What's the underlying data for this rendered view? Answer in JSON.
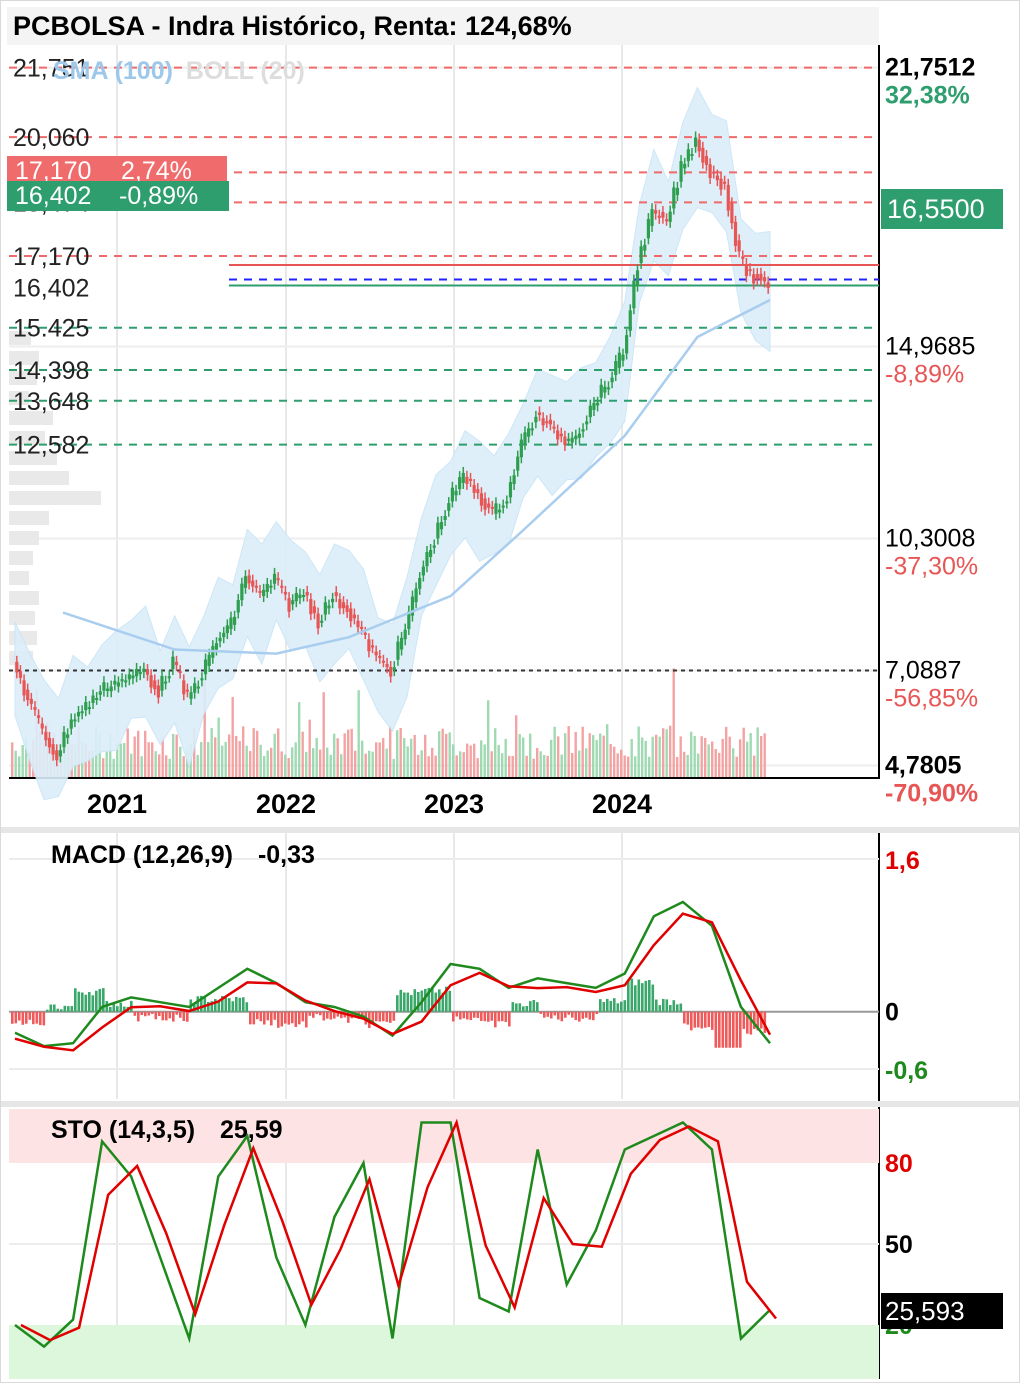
{
  "title": "PCBOLSA - Indra Histórico, Renta: 124,68%",
  "colors": {
    "up": "#2e9e4f",
    "down": "#e85555",
    "sma": "#a9cdee",
    "boll_fill": "#dbeefa",
    "macd_line": "#1e8a1e",
    "signal_line": "#e00000"
  },
  "main": {
    "indicator_sma": "SMA (100)",
    "indicator_boll": "BOLL (20)",
    "x_ticks": [
      "2021",
      "2022",
      "2023",
      "2024"
    ],
    "left_levels": [
      {
        "label": "21,751",
        "value": 21.751
      },
      {
        "label": "20,060",
        "value": 20.06
      },
      {
        "label": "19,204",
        "value": 19.204
      },
      {
        "label": "18,474",
        "value": 18.474
      },
      {
        "label": "17,170",
        "value": 17.17
      },
      {
        "label": "16,402",
        "value": 16.402
      },
      {
        "label": "15.425",
        "value": 15.425
      },
      {
        "label": "14,398",
        "value": 14.398
      },
      {
        "label": "13,648",
        "value": 13.648
      },
      {
        "label": "12,582",
        "value": 12.582
      }
    ],
    "badge_red": {
      "price": "17,170",
      "pct": "2,74%"
    },
    "badge_green": {
      "price": "16,402",
      "pct": "-0,89%"
    },
    "right_axis": [
      {
        "price": "21,7512",
        "pct": "32,38%",
        "value": 21.7512
      },
      {
        "price": "14,9685",
        "pct": "-8,89%",
        "value": 14.9685
      },
      {
        "price": "10,3008",
        "pct": "-37,30%",
        "value": 10.3008
      },
      {
        "price": "7,0887",
        "pct": "-56,85%",
        "value": 7.0887
      },
      {
        "price": "4,7805",
        "pct": "-70,90%",
        "value": 4.7805
      }
    ],
    "current_price": "16,5500"
  },
  "macd": {
    "label": "MACD (12,26,9)",
    "value": "-0,33",
    "axis": [
      "1,6",
      "0",
      "-0,6"
    ]
  },
  "sto": {
    "label": "STO (14,3,5)",
    "value": "25,59",
    "axis": [
      "80",
      "50",
      "20"
    ],
    "current": "25,593"
  },
  "chart_data": [
    {
      "type": "line",
      "title": "PCBOLSA - Indra Histórico, Renta: 124,68%",
      "xlabel": "",
      "ylabel": "",
      "x_ticks": [
        "2021",
        "2022",
        "2023",
        "2024"
      ],
      "ylim": [
        4.5,
        22
      ],
      "series": [
        {
          "name": "",
          "points": [
            [
              "2020-07",
              7.3
            ],
            [
              "2020-08",
              6.4
            ],
            [
              "2020-09",
              5.6
            ],
            [
              "2020-10",
              5.0
            ],
            [
              "2020-11",
              5.9
            ],
            [
              "2020-12",
              6.2
            ],
            [
              "2021-01",
              6.6
            ],
            [
              "2021-02",
              6.8
            ],
            [
              "2021-03",
              6.9
            ],
            [
              "2021-04",
              7.1
            ],
            [
              "2021-05",
              6.6
            ],
            [
              "2021-06",
              7.3
            ],
            [
              "2021-07",
              6.4
            ],
            [
              "2021-08",
              7.0
            ],
            [
              "2021-09",
              7.8
            ],
            [
              "2021-10",
              8.2
            ],
            [
              "2021-11",
              9.4
            ],
            [
              "2021-12",
              8.9
            ],
            [
              "2022-01",
              9.3
            ],
            [
              "2022-02",
              8.7
            ],
            [
              "2022-03",
              9.0
            ],
            [
              "2022-04",
              8.3
            ],
            [
              "2022-05",
              8.9
            ],
            [
              "2022-06",
              8.6
            ],
            [
              "2022-07",
              8.0
            ],
            [
              "2022-08",
              7.4
            ],
            [
              "2022-09",
              7.1
            ],
            [
              "2022-10",
              8.1
            ],
            [
              "2022-11",
              9.4
            ],
            [
              "2022-12",
              10.3
            ],
            [
              "2023-01",
              11.2
            ],
            [
              "2023-02",
              11.8
            ],
            [
              "2023-03",
              11.4
            ],
            [
              "2023-04",
              10.9
            ],
            [
              "2023-05",
              11.3
            ],
            [
              "2023-06",
              12.6
            ],
            [
              "2023-07",
              13.3
            ],
            [
              "2023-08",
              13.0
            ],
            [
              "2023-09",
              12.7
            ],
            [
              "2023-10",
              12.9
            ],
            [
              "2023-11",
              13.6
            ],
            [
              "2023-12",
              14.1
            ],
            [
              "2024-01",
              14.8
            ],
            [
              "2024-02",
              17.0
            ],
            [
              "2024-03",
              18.2
            ],
            [
              "2024-04",
              18.0
            ],
            [
              "2024-05",
              19.3
            ],
            [
              "2024-06",
              20.0
            ],
            [
              "2024-07",
              19.2
            ],
            [
              "2024-08",
              18.9
            ],
            [
              "2024-09",
              17.1
            ],
            [
              "2024-10",
              16.6
            ],
            [
              "2024-11",
              16.5
            ]
          ]
        },
        {
          "name": "SMA (100)",
          "points": [
            [
              "2021-01",
              8.5
            ],
            [
              "2021-06",
              7.6
            ],
            [
              "2022-01",
              7.5
            ],
            [
              "2022-06",
              7.9
            ],
            [
              "2023-01",
              8.9
            ],
            [
              "2023-06",
              10.5
            ],
            [
              "2024-01",
              12.8
            ],
            [
              "2024-06",
              15.2
            ],
            [
              "2024-11",
              16.1
            ]
          ]
        }
      ]
    },
    {
      "type": "line",
      "title": "MACD (12,26,9)",
      "x_ticks": [
        "2021",
        "2022",
        "2023",
        "2024"
      ],
      "ylim": [
        -0.6,
        1.6
      ],
      "series": [
        {
          "name": "",
          "points": [
            [
              "2020-07",
              -0.22
            ],
            [
              "2020-09",
              -0.36
            ],
            [
              "2020-11",
              -0.33
            ],
            [
              "2021-01",
              0.05
            ],
            [
              "2021-03",
              0.15
            ],
            [
              "2021-05",
              0.1
            ],
            [
              "2021-07",
              0.05
            ],
            [
              "2021-09",
              0.25
            ],
            [
              "2021-11",
              0.45
            ],
            [
              "2022-01",
              0.3
            ],
            [
              "2022-03",
              0.1
            ],
            [
              "2022-05",
              0.05
            ],
            [
              "2022-07",
              -0.05
            ],
            [
              "2022-09",
              -0.25
            ],
            [
              "2022-11",
              0.1
            ],
            [
              "2023-01",
              0.5
            ],
            [
              "2023-03",
              0.45
            ],
            [
              "2023-05",
              0.25
            ],
            [
              "2023-07",
              0.35
            ],
            [
              "2023-09",
              0.3
            ],
            [
              "2023-11",
              0.25
            ],
            [
              "2024-01",
              0.4
            ],
            [
              "2024-03",
              1.0
            ],
            [
              "2024-05",
              1.15
            ],
            [
              "2024-07",
              0.9
            ],
            [
              "2024-09",
              0.05
            ],
            [
              "2024-11",
              -0.33
            ]
          ]
        }
      ]
    },
    {
      "type": "line",
      "title": "STO (14,3,5)",
      "x_ticks": [
        "2021",
        "2022",
        "2023",
        "2024"
      ],
      "ylim": [
        0,
        100
      ],
      "series": [
        {
          "name": "",
          "points": [
            [
              "2020-07",
              20
            ],
            [
              "2020-09",
              12
            ],
            [
              "2020-11",
              22
            ],
            [
              "2021-01",
              88
            ],
            [
              "2021-03",
              75
            ],
            [
              "2021-05",
              45
            ],
            [
              "2021-07",
              15
            ],
            [
              "2021-09",
              75
            ],
            [
              "2021-11",
              90
            ],
            [
              "2022-01",
              45
            ],
            [
              "2022-03",
              20
            ],
            [
              "2022-05",
              60
            ],
            [
              "2022-07",
              80
            ],
            [
              "2022-09",
              15
            ],
            [
              "2022-11",
              95
            ],
            [
              "2023-01",
              95
            ],
            [
              "2023-03",
              30
            ],
            [
              "2023-05",
              25
            ],
            [
              "2023-07",
              85
            ],
            [
              "2023-09",
              35
            ],
            [
              "2023-11",
              55
            ],
            [
              "2024-01",
              85
            ],
            [
              "2024-03",
              90
            ],
            [
              "2024-05",
              95
            ],
            [
              "2024-07",
              85
            ],
            [
              "2024-09",
              15
            ],
            [
              "2024-11",
              25.59
            ]
          ]
        }
      ]
    }
  ]
}
